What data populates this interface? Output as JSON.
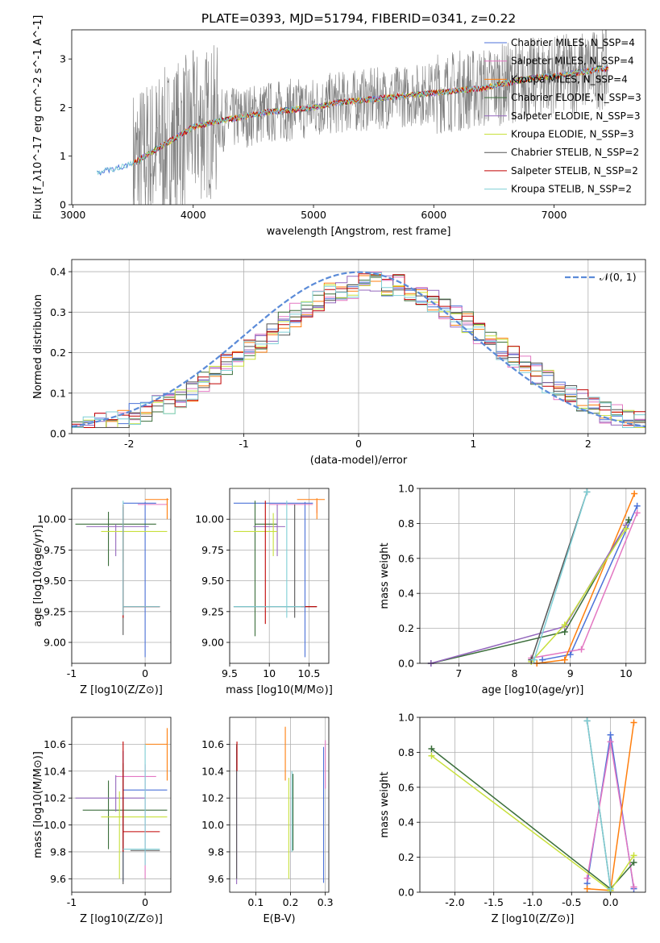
{
  "figure_title": "PLATE=0393, MJD=51794, FIBERID=0341, z=0.22",
  "chart_data": [
    {
      "id": "spectrum",
      "type": "line",
      "title": "PLATE=0393, MJD=51794, FIBERID=0341, z=0.22",
      "xlabel": "wavelength [Angstrom, rest frame]",
      "ylabel": "Flux [f_λ10^-17 erg cm^-2 s^-1 A^-1]",
      "xlim": [
        2990,
        7760
      ],
      "ylim": [
        0,
        3.6
      ],
      "xticks": [
        3000,
        4000,
        5000,
        6000,
        7000
      ],
      "yticks": [
        0,
        1,
        2,
        3
      ],
      "grid": false,
      "legend_position": "top-right",
      "data_flux_noise_start": 3500,
      "legend": [
        {
          "label": "Chabrier MILES, N_SSP=4",
          "color": "#4c72d8"
        },
        {
          "label": "Salpeter MILES, N_SSP=4",
          "color": "#e377c2"
        },
        {
          "label": "Kroupa MILES, N_SSP=4",
          "color": "#ff7f0e"
        },
        {
          "label": "Chabrier ELODIE, N_SSP=3",
          "color": "#3b6e3b"
        },
        {
          "label": "Salpeter ELODIE, N_SSP=3",
          "color": "#9467bd"
        },
        {
          "label": "Kroupa ELODIE, N_SSP=3",
          "color": "#c8e03c"
        },
        {
          "label": "Chabrier STELIB, N_SSP=2",
          "color": "#555555"
        },
        {
          "label": "Salpeter STELIB, N_SSP=2",
          "color": "#c00000"
        },
        {
          "label": "Kroupa STELIB, N_SSP=2",
          "color": "#7fcfd6"
        }
      ],
      "series": [
        {
          "x": [
            3200,
            3300,
            3400,
            3500,
            3600,
            3700,
            3800,
            3900,
            4000,
            4200,
            4400,
            4600,
            4800,
            5000,
            5200,
            5400,
            5600,
            5800,
            6000,
            6200,
            6400,
            6600,
            6800,
            7000,
            7200,
            7400
          ],
          "y": [
            0.65,
            0.72,
            0.78,
            0.85,
            1.0,
            1.15,
            1.3,
            1.45,
            1.6,
            1.72,
            1.8,
            1.9,
            1.95,
            2.0,
            2.1,
            2.15,
            2.2,
            2.25,
            2.3,
            2.35,
            2.4,
            2.5,
            2.6,
            2.65,
            2.72,
            2.8
          ]
        }
      ]
    },
    {
      "id": "residuals",
      "type": "line",
      "xlabel": "(data-model)/error",
      "ylabel": "Normed distribution",
      "xlim": [
        -2.5,
        2.5
      ],
      "ylim": [
        0,
        0.43
      ],
      "xticks": [
        -2,
        -1,
        0,
        1,
        2
      ],
      "yticks": [
        0.0,
        0.1,
        0.2,
        0.3,
        0.4
      ],
      "grid": true,
      "legend_position": "top-right",
      "legend": [
        {
          "label": "𝒩(0, 1)",
          "color": "#5b8bd8"
        }
      ],
      "hist_bin_width": 0.1,
      "hist_envelope": [
        0.02,
        0.03,
        0.04,
        0.05,
        0.07,
        0.09,
        0.11,
        0.14,
        0.17,
        0.2,
        0.24,
        0.27,
        0.3,
        0.32,
        0.34,
        0.36,
        0.37,
        0.38,
        0.37,
        0.36,
        0.34,
        0.3,
        0.26,
        0.23,
        0.2,
        0.16,
        0.13,
        0.1,
        0.08,
        0.06
      ]
    },
    {
      "id": "age_vs_Z",
      "type": "scatter",
      "xlabel": "Z [log10(Z/Z⊙)]",
      "ylabel": "age [log10(age/yr)]",
      "xlim": [
        -1,
        0.35
      ],
      "ylim": [
        8.83,
        10.25
      ],
      "xticks": [
        -1,
        0
      ],
      "yticks": [
        9.0,
        9.25,
        9.5,
        9.75,
        10.0
      ],
      "grid": true
    },
    {
      "id": "age_vs_mass",
      "type": "scatter",
      "xlabel": "mass [log10(M/M⊙)]",
      "xlim": [
        9.5,
        10.75
      ],
      "ylim": [
        8.83,
        10.25
      ],
      "xticks": [
        9.5,
        10.0,
        10.5
      ],
      "yticks": [
        9.0,
        9.25,
        9.5,
        9.75,
        10.0
      ],
      "grid": true
    },
    {
      "id": "weight_vs_age",
      "type": "line",
      "xlabel": "age [log10(age/yr)]",
      "ylabel": "mass weight",
      "xlim": [
        6.3,
        10.35
      ],
      "ylim": [
        0,
        1
      ],
      "xticks": [
        7,
        8,
        9,
        10
      ],
      "yticks": [
        0.0,
        0.2,
        0.4,
        0.6,
        0.8,
        1.0
      ],
      "grid": true,
      "series": [
        {
          "color": "#4c72d8",
          "x": [
            8.5,
            9.0,
            10.2
          ],
          "y": [
            0.02,
            0.05,
            0.9
          ]
        },
        {
          "color": "#e377c2",
          "x": [
            8.3,
            9.2,
            10.2
          ],
          "y": [
            0.03,
            0.08,
            0.86
          ]
        },
        {
          "color": "#ff7f0e",
          "x": [
            8.4,
            8.9,
            10.15
          ],
          "y": [
            0.0,
            0.02,
            0.97
          ]
        },
        {
          "color": "#3b6e3b",
          "x": [
            6.5,
            8.9,
            10.05
          ],
          "y": [
            0.0,
            0.18,
            0.82
          ]
        },
        {
          "color": "#9467bd",
          "x": [
            6.5,
            8.9,
            10.0
          ],
          "y": [
            0.0,
            0.21,
            0.79
          ]
        },
        {
          "color": "#c8e03c",
          "x": [
            8.3,
            8.9,
            10.0
          ],
          "y": [
            0.01,
            0.22,
            0.77
          ]
        },
        {
          "color": "#555555",
          "x": [
            8.3,
            9.3
          ],
          "y": [
            0.02,
            0.98
          ]
        },
        {
          "color": "#7fcfd6",
          "x": [
            8.35,
            9.3
          ],
          "y": [
            0.02,
            0.98
          ]
        }
      ]
    },
    {
      "id": "mass_vs_Z",
      "type": "scatter",
      "xlabel": "Z [log10(Z/Z⊙)]",
      "ylabel": "mass [log10(M/M⊙)]",
      "xlim": [
        -1,
        0.35
      ],
      "ylim": [
        9.5,
        10.8
      ],
      "xticks": [
        -1,
        0
      ],
      "yticks": [
        9.6,
        9.8,
        10.0,
        10.2,
        10.4,
        10.6
      ],
      "grid": true
    },
    {
      "id": "mass_vs_EBV",
      "type": "scatter",
      "xlabel": "E(B-V)",
      "xlim": [
        0.025,
        0.31
      ],
      "ylim": [
        9.5,
        10.8
      ],
      "xticks": [
        0.1,
        0.2,
        0.3
      ],
      "yticks": [
        9.6,
        9.8,
        10.0,
        10.2,
        10.4,
        10.6
      ],
      "grid": true
    },
    {
      "id": "weight_vs_Z",
      "type": "line",
      "xlabel": "Z [log10(Z/Z⊙)]",
      "ylabel": "mass weight",
      "xlim": [
        -2.45,
        0.45
      ],
      "ylim": [
        0,
        1
      ],
      "xticks": [
        -2.0,
        -1.5,
        -1.0,
        -0.5,
        0.0
      ],
      "yticks": [
        0.0,
        0.2,
        0.4,
        0.6,
        0.8,
        1.0
      ],
      "grid": true,
      "series": [
        {
          "color": "#4c72d8",
          "x": [
            -0.3,
            0.0,
            0.3
          ],
          "y": [
            0.05,
            0.9,
            0.02
          ]
        },
        {
          "color": "#e377c2",
          "x": [
            -0.3,
            0.0,
            0.3
          ],
          "y": [
            0.08,
            0.86,
            0.03
          ]
        },
        {
          "color": "#ff7f0e",
          "x": [
            -0.3,
            0.0,
            0.3
          ],
          "y": [
            0.02,
            0.01,
            0.97
          ]
        },
        {
          "color": "#3b6e3b",
          "x": [
            -2.3,
            0.0,
            0.3
          ],
          "y": [
            0.82,
            0.02,
            0.17
          ]
        },
        {
          "color": "#c8e03c",
          "x": [
            -2.3,
            0.0,
            0.3
          ],
          "y": [
            0.78,
            0.01,
            0.21
          ]
        },
        {
          "color": "#555555",
          "x": [
            -0.3,
            0.0
          ],
          "y": [
            0.98,
            0.02
          ]
        },
        {
          "color": "#7fcfd6",
          "x": [
            -0.3,
            0.0
          ],
          "y": [
            0.98,
            0.02
          ]
        }
      ]
    }
  ]
}
